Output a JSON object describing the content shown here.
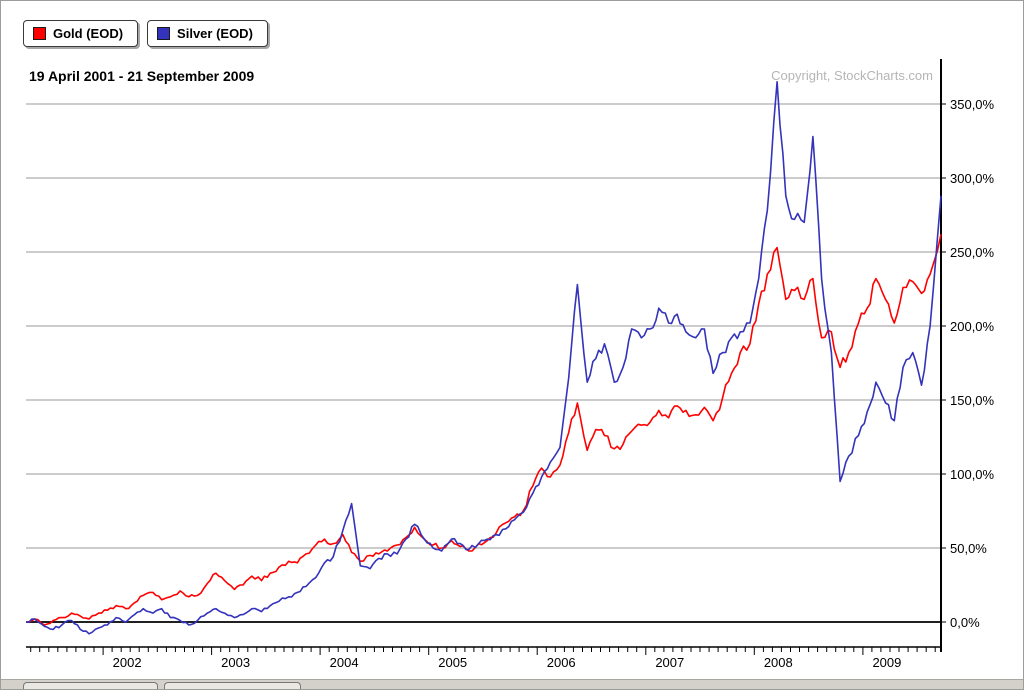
{
  "header": {
    "date_range": "19 April 2001 - 21 September 2009",
    "copyright": "Copyright, StockCharts.com"
  },
  "legend": {
    "items": [
      {
        "label": "Gold (EOD)",
        "color": "#ff0000"
      },
      {
        "label": "Silver (EOD)",
        "color": "#3333bb"
      }
    ]
  },
  "chart_data": {
    "type": "line",
    "title": "Gold (EOD) vs Silver (EOD) — percent change, 19 April 2001 - 21 September 2009",
    "legend_position": "top-left",
    "grid": "horizontal",
    "x_axis": {
      "labels": [
        "2002",
        "2003",
        "2004",
        "2005",
        "2006",
        "2007",
        "2008",
        "2009"
      ],
      "range": [
        2001.29,
        2009.72
      ]
    },
    "y_axis": {
      "unit": "%",
      "range": [
        -20,
        380
      ],
      "ticks": [
        0,
        50,
        100,
        150,
        200,
        250,
        300,
        350
      ],
      "tick_labels": [
        "0,0%",
        "50,0%",
        "100,0%",
        "150,0%",
        "200,0%",
        "250,0%",
        "300,0%",
        "350,0%"
      ]
    },
    "x": [
      2001.29,
      2001.37,
      2001.46,
      2001.54,
      2001.62,
      2001.71,
      2001.79,
      2001.87,
      2001.96,
      2002.04,
      2002.12,
      2002.21,
      2002.29,
      2002.37,
      2002.46,
      2002.54,
      2002.62,
      2002.71,
      2002.79,
      2002.87,
      2002.96,
      2003.04,
      2003.12,
      2003.21,
      2003.29,
      2003.37,
      2003.46,
      2003.54,
      2003.62,
      2003.71,
      2003.79,
      2003.87,
      2003.96,
      2004.04,
      2004.12,
      2004.21,
      2004.29,
      2004.37,
      2004.46,
      2004.54,
      2004.62,
      2004.71,
      2004.79,
      2004.87,
      2004.96,
      2005.04,
      2005.12,
      2005.21,
      2005.29,
      2005.37,
      2005.46,
      2005.54,
      2005.62,
      2005.71,
      2005.79,
      2005.87,
      2005.96,
      2006.04,
      2006.12,
      2006.21,
      2006.29,
      2006.37,
      2006.46,
      2006.54,
      2006.62,
      2006.71,
      2006.79,
      2006.87,
      2006.96,
      2007.04,
      2007.12,
      2007.21,
      2007.29,
      2007.37,
      2007.46,
      2007.54,
      2007.62,
      2007.71,
      2007.79,
      2007.87,
      2007.96,
      2008.04,
      2008.12,
      2008.21,
      2008.29,
      2008.37,
      2008.46,
      2008.54,
      2008.62,
      2008.71,
      2008.79,
      2008.87,
      2008.96,
      2009.04,
      2009.12,
      2009.21,
      2009.29,
      2009.37,
      2009.46,
      2009.54,
      2009.62,
      2009.72
    ],
    "series": [
      {
        "name": "Gold (EOD)",
        "color": "#ff0000",
        "values": [
          0,
          2,
          -2,
          1,
          3,
          6,
          4,
          2,
          6,
          8,
          11,
          9,
          13,
          18,
          20,
          15,
          17,
          21,
          17,
          18,
          26,
          33,
          28,
          22,
          25,
          31,
          28,
          33,
          37,
          41,
          40,
          46,
          52,
          56,
          53,
          59,
          47,
          41,
          45,
          46,
          48,
          52,
          57,
          64,
          56,
          52,
          50,
          55,
          51,
          48,
          53,
          55,
          60,
          67,
          71,
          75,
          92,
          104,
          98,
          106,
          128,
          148,
          116,
          130,
          126,
          117,
          120,
          129,
          133,
          135,
          143,
          138,
          146,
          143,
          140,
          145,
          136,
          152,
          168,
          182,
          188,
          215,
          235,
          253,
          218,
          224,
          218,
          232,
          192,
          196,
          172,
          182,
          202,
          212,
          232,
          218,
          202,
          226,
          230,
          222,
          235,
          262
        ]
      },
      {
        "name": "Silver (EOD)",
        "color": "#3333bb",
        "values": [
          0,
          2,
          -3,
          -5,
          -2,
          1,
          -5,
          -8,
          -4,
          -2,
          3,
          0,
          5,
          9,
          6,
          9,
          3,
          1,
          -2,
          1,
          6,
          9,
          6,
          3,
          5,
          9,
          7,
          11,
          14,
          17,
          20,
          24,
          30,
          40,
          44,
          62,
          80,
          38,
          36,
          43,
          46,
          46,
          56,
          66,
          56,
          50,
          48,
          56,
          53,
          49,
          53,
          56,
          59,
          63,
          69,
          74,
          87,
          98,
          108,
          118,
          165,
          228,
          162,
          178,
          188,
          162,
          172,
          198,
          192,
          198,
          212,
          202,
          208,
          196,
          192,
          198,
          168,
          182,
          192,
          196,
          202,
          232,
          278,
          365,
          288,
          272,
          270,
          328,
          232,
          182,
          95,
          112,
          126,
          142,
          162,
          148,
          136,
          172,
          182,
          160,
          200,
          288
        ]
      }
    ]
  }
}
